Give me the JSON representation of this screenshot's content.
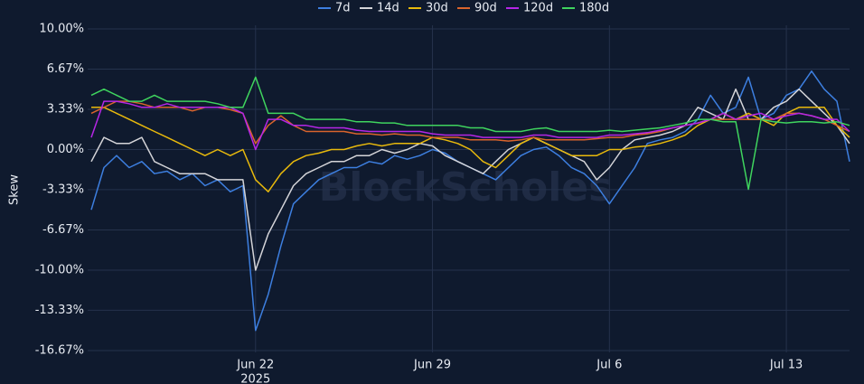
{
  "chart_data": {
    "type": "line",
    "y_label": "Skew",
    "watermark": "BlockScholes",
    "year_label": "2025",
    "categories": [
      null,
      null,
      null,
      null,
      null,
      null,
      null,
      null,
      null,
      null,
      null,
      null,
      null,
      "Jun 22",
      null,
      null,
      null,
      null,
      null,
      null,
      null,
      null,
      null,
      null,
      null,
      null,
      null,
      "Jun 29",
      null,
      null,
      null,
      null,
      null,
      null,
      null,
      null,
      null,
      null,
      null,
      null,
      null,
      "Jul 6",
      null,
      null,
      null,
      null,
      null,
      null,
      null,
      null,
      null,
      null,
      null,
      null,
      null,
      "Jul 13",
      null,
      null,
      null,
      null,
      null
    ],
    "ylim": [
      -16.67,
      10
    ],
    "yticks": [
      {
        "value": 10,
        "label": "10.00%"
      },
      {
        "value": 6.67,
        "label": "6.67%"
      },
      {
        "value": 3.33,
        "label": "3.33%"
      },
      {
        "value": 0,
        "label": "0.00%"
      },
      {
        "value": -3.33,
        "label": "-3.33%"
      },
      {
        "value": -6.67,
        "label": "-6.67%"
      },
      {
        "value": -10,
        "label": "-10.00%"
      },
      {
        "value": -13.33,
        "label": "-13.33%"
      },
      {
        "value": -16.67,
        "label": "-16.67%"
      }
    ],
    "grid": true,
    "legend": "top",
    "series": [
      {
        "name": "7d",
        "color": "#3d7fe0",
        "values": [
          -5,
          -1.5,
          -0.5,
          -1.5,
          -1,
          -2,
          -1.8,
          -2.5,
          -2,
          -3,
          -2.5,
          -3.5,
          -3,
          -15,
          -12,
          -8,
          -4.5,
          -3.5,
          -2.5,
          -2,
          -1.5,
          -1.5,
          -1,
          -1.2,
          -0.5,
          -0.8,
          -0.5,
          0,
          -0.3,
          -1,
          -1.5,
          -2,
          -2.5,
          -1.5,
          -0.5,
          0,
          0.2,
          -0.5,
          -1.5,
          -2,
          -3,
          -4.5,
          -3,
          -1.5,
          0.5,
          0.8,
          1,
          1.5,
          2.5,
          4.5,
          3,
          3.5,
          6,
          2.5,
          3,
          4.5,
          5,
          6.5,
          5,
          4,
          -1
        ]
      },
      {
        "name": "14d",
        "color": "#d4d4d8",
        "values": [
          -1,
          1,
          0.5,
          0.5,
          1,
          -1,
          -1.5,
          -2,
          -2,
          -2,
          -2.5,
          -2.5,
          -2.5,
          -10,
          -7,
          -5,
          -3,
          -2,
          -1.5,
          -1,
          -1,
          -0.5,
          -0.5,
          0,
          -0.3,
          0,
          0.5,
          0.3,
          -0.5,
          -1,
          -1.5,
          -2,
          -1,
          0,
          0.5,
          1,
          0.5,
          0,
          -0.5,
          -1,
          -2.5,
          -1.5,
          0,
          0.8,
          1,
          1.2,
          1.5,
          2,
          3.5,
          3,
          2.5,
          5,
          2.5,
          2.5,
          3.5,
          4,
          5,
          4,
          3,
          2,
          0.5
        ]
      },
      {
        "name": "30d",
        "color": "#e8b90c",
        "values": [
          3.5,
          3.5,
          3,
          2.5,
          2,
          1.5,
          1,
          0.5,
          0,
          -0.5,
          0,
          -0.5,
          0,
          -2.5,
          -3.5,
          -2,
          -1,
          -0.5,
          -0.3,
          0,
          0,
          0.3,
          0.5,
          0.3,
          0.5,
          0.5,
          0.5,
          1,
          0.8,
          0.5,
          0,
          -1,
          -1.5,
          -0.5,
          0.5,
          1,
          0.5,
          0,
          -0.5,
          -0.5,
          -0.5,
          0,
          0,
          0.2,
          0.3,
          0.5,
          0.8,
          1.2,
          2,
          2.5,
          3,
          2.5,
          3,
          2.5,
          2,
          3,
          3.5,
          3.5,
          3.5,
          2,
          1
        ]
      },
      {
        "name": "90d",
        "color": "#d9642c",
        "values": [
          3,
          3.5,
          4,
          4,
          3.8,
          3.5,
          3.5,
          3.5,
          3.2,
          3.5,
          3.5,
          3.3,
          3,
          0.5,
          2,
          2.8,
          2,
          1.5,
          1.5,
          1.5,
          1.5,
          1.3,
          1.3,
          1.2,
          1.3,
          1.2,
          1.2,
          1,
          1,
          1,
          0.8,
          0.8,
          0.8,
          0.7,
          0.8,
          1,
          0.8,
          0.8,
          0.8,
          0.8,
          0.9,
          1,
          1,
          1.2,
          1.3,
          1.5,
          1.8,
          2,
          2.2,
          2.5,
          2.5,
          2.5,
          2.5,
          2.5,
          2.5,
          3,
          3,
          2.8,
          2.5,
          2,
          1.5
        ]
      },
      {
        "name": "120d",
        "color": "#b526e6",
        "values": [
          1,
          4,
          4,
          3.8,
          3.5,
          3.5,
          3.8,
          3.5,
          3.5,
          3.5,
          3.5,
          3.5,
          3,
          0,
          2.5,
          2.5,
          2,
          2,
          1.8,
          1.8,
          1.8,
          1.6,
          1.5,
          1.5,
          1.5,
          1.5,
          1.5,
          1.3,
          1.2,
          1.2,
          1.2,
          1,
          1,
          1,
          1,
          1.2,
          1.2,
          1,
          1,
          1,
          1,
          1.2,
          1.2,
          1.3,
          1.4,
          1.6,
          1.8,
          2,
          2.2,
          2.5,
          3,
          2.5,
          2.8,
          3,
          2.5,
          2.8,
          3,
          2.8,
          2.5,
          2.5,
          1.5
        ]
      },
      {
        "name": "180d",
        "color": "#3fd45e",
        "values": [
          4.5,
          5,
          4.5,
          4,
          4,
          4.5,
          4,
          4,
          4,
          4,
          3.8,
          3.5,
          3.5,
          6,
          3,
          3,
          3,
          2.5,
          2.5,
          2.5,
          2.5,
          2.3,
          2.3,
          2.2,
          2.2,
          2,
          2,
          2,
          2,
          2,
          1.8,
          1.8,
          1.5,
          1.5,
          1.5,
          1.7,
          1.8,
          1.5,
          1.5,
          1.5,
          1.5,
          1.6,
          1.5,
          1.6,
          1.7,
          1.8,
          2,
          2.2,
          2.5,
          2.5,
          2.3,
          2.3,
          -3.3,
          2.5,
          2.3,
          2.2,
          2.3,
          2.3,
          2.2,
          2.3,
          2
        ]
      }
    ]
  }
}
